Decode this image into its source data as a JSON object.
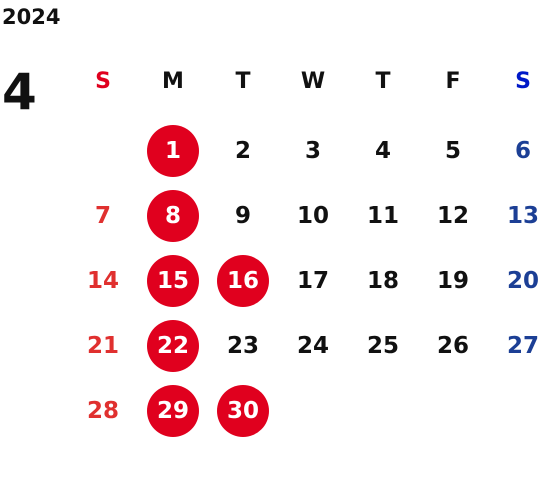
{
  "calendar": {
    "year": "2024",
    "month": "4",
    "weekdays": [
      "S",
      "M",
      "T",
      "W",
      "T",
      "F",
      "S"
    ],
    "colors": {
      "holiday_circle": "#e0001e",
      "sunday_text": "#e0302f",
      "saturday_text": "#1c3f95",
      "saturday_header": "#0018c8",
      "default_text": "#111111"
    },
    "weeks": [
      [
        {
          "day": ""
        },
        {
          "day": "1",
          "highlighted": true
        },
        {
          "day": "2"
        },
        {
          "day": "3"
        },
        {
          "day": "4"
        },
        {
          "day": "5"
        },
        {
          "day": "6"
        }
      ],
      [
        {
          "day": "7"
        },
        {
          "day": "8",
          "highlighted": true
        },
        {
          "day": "9"
        },
        {
          "day": "10"
        },
        {
          "day": "11"
        },
        {
          "day": "12"
        },
        {
          "day": "13"
        }
      ],
      [
        {
          "day": "14"
        },
        {
          "day": "15",
          "highlighted": true
        },
        {
          "day": "16",
          "highlighted": true
        },
        {
          "day": "17"
        },
        {
          "day": "18"
        },
        {
          "day": "19"
        },
        {
          "day": "20"
        }
      ],
      [
        {
          "day": "21"
        },
        {
          "day": "22",
          "highlighted": true
        },
        {
          "day": "23"
        },
        {
          "day": "24"
        },
        {
          "day": "25"
        },
        {
          "day": "26"
        },
        {
          "day": "27"
        }
      ],
      [
        {
          "day": "28"
        },
        {
          "day": "29",
          "highlighted": true
        },
        {
          "day": "30",
          "highlighted": true
        },
        {
          "day": ""
        },
        {
          "day": ""
        },
        {
          "day": ""
        },
        {
          "day": ""
        }
      ]
    ]
  }
}
